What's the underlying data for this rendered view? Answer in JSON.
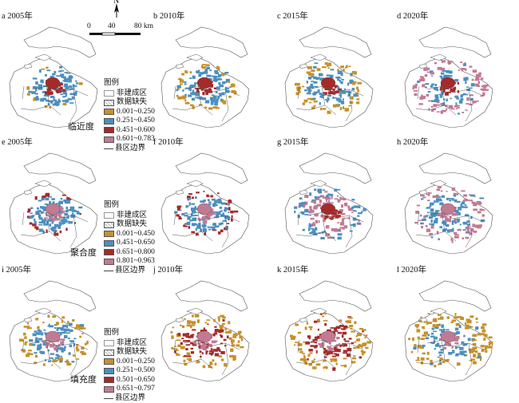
{
  "north_label": "N",
  "scale": {
    "ticks": [
      "0",
      "40",
      "80 km"
    ]
  },
  "colors": {
    "orange": "#c8902a",
    "blue": "#4b8fbf",
    "red": "#a52a2a",
    "pink": "#c27a93",
    "nonbuilt": "#ffffff",
    "missing": "#e0e0e0"
  },
  "panels": [
    {
      "label": "a 2005年",
      "scheme": "A"
    },
    {
      "label": "b 2010年",
      "scheme": "B"
    },
    {
      "label": "c 2015年",
      "scheme": "C"
    },
    {
      "label": "d 2020年",
      "scheme": "D"
    },
    {
      "label": "e 2005年",
      "scheme": "E"
    },
    {
      "label": "f 2010年",
      "scheme": "F"
    },
    {
      "label": "g 2015年",
      "scheme": "G"
    },
    {
      "label": "h 2020年",
      "scheme": "H"
    },
    {
      "label": "i 2005年",
      "scheme": "I"
    },
    {
      "label": "j 2010年",
      "scheme": "J"
    },
    {
      "label": "k 2015年",
      "scheme": "K"
    },
    {
      "label": "l 2020年",
      "scheme": "L"
    }
  ],
  "legends": [
    {
      "title": "图例",
      "non_built": "非建成区",
      "missing": "数据缺失",
      "classes": [
        "0.001~0.250",
        "0.251~0.450",
        "0.451~0.600",
        "0.601~0.783"
      ],
      "class_colors": [
        "#c8902a",
        "#4b8fbf",
        "#a52a2a",
        "#c27a93"
      ],
      "boundary": "县区边界",
      "indicator": "临近度"
    },
    {
      "title": "图例",
      "non_built": "非建成区",
      "missing": "数据缺失",
      "classes": [
        "0.001~0.450",
        "0.451~0.650",
        "0.651~0.800",
        "0.801~0.963"
      ],
      "class_colors": [
        "#c8902a",
        "#4b8fbf",
        "#a52a2a",
        "#c27a93"
      ],
      "boundary": "县区边界",
      "indicator": "聚合度"
    },
    {
      "title": "图例",
      "non_built": "非建成区",
      "missing": "数据缺失",
      "classes": [
        "0.001~0.250",
        "0.251~0.500",
        "0.501~0.650",
        "0.651~0.797"
      ],
      "class_colors": [
        "#c8902a",
        "#4b8fbf",
        "#a52a2a",
        "#c27a93"
      ],
      "boundary": "县区边界",
      "indicator": "填充度"
    }
  ]
}
